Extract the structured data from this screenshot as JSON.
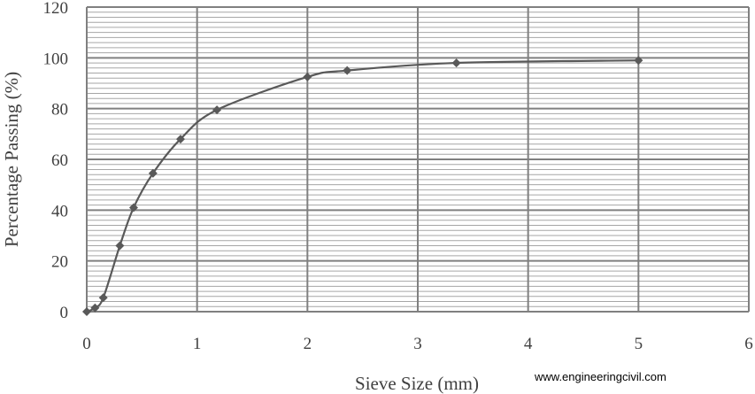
{
  "chart_data": {
    "type": "line",
    "title": "",
    "xlabel": "Sieve Size (mm)",
    "ylabel": "Percentage Passing (%)",
    "xlim": [
      0,
      6
    ],
    "ylim": [
      0,
      120
    ],
    "x_ticks": [
      "0",
      "1",
      "2",
      "3",
      "4",
      "5",
      "6"
    ],
    "y_ticks": [
      "0",
      "20",
      "40",
      "60",
      "80",
      "100",
      "120"
    ],
    "grid": true,
    "minor_grid_y": true,
    "legend": "none",
    "marker": "diamond",
    "smooth": true,
    "series": [
      {
        "x": [
          0,
          0.075,
          0.15,
          0.3,
          0.425,
          0.6,
          0.85,
          1.18,
          2.0,
          2.36,
          3.35,
          5.0
        ],
        "y": [
          0,
          1.5,
          5.5,
          26,
          41,
          54.5,
          68,
          79.5,
          92.5,
          95,
          98,
          99
        ]
      }
    ],
    "colors": {
      "line": "#595959",
      "grid_major": "#808080",
      "grid_minor": "#a6a6a6"
    }
  },
  "watermark": "www.engineeringcivil.com"
}
